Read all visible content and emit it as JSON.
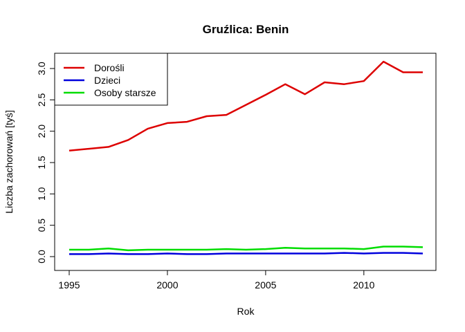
{
  "chart_data": {
    "type": "line",
    "title": "Gruźlica: Benin",
    "xlabel": "Rok",
    "ylabel": "Liczba zachorowań [tyś]",
    "xlim": [
      1995,
      2013
    ],
    "ylim": [
      0,
      3.1
    ],
    "x_ticks": [
      1995,
      2000,
      2005,
      2010
    ],
    "y_ticks": [
      0.0,
      0.5,
      1.0,
      1.5,
      2.0,
      2.5,
      3.0
    ],
    "x_tick_labels": [
      "1995",
      "2000",
      "2005",
      "2010"
    ],
    "y_tick_labels": [
      "0.0",
      "0.5",
      "1.0",
      "1.5",
      "2.0",
      "2.5",
      "3.0"
    ],
    "x": [
      1995,
      1996,
      1997,
      1998,
      1999,
      2000,
      2001,
      2002,
      2003,
      2004,
      2005,
      2006,
      2007,
      2008,
      2009,
      2010,
      2011,
      2012,
      2013
    ],
    "series": [
      {
        "name": "Dorośli",
        "color": "#dd0000",
        "values": [
          1.69,
          1.72,
          1.75,
          1.86,
          2.04,
          2.13,
          2.15,
          2.24,
          2.26,
          2.42,
          2.58,
          2.75,
          2.59,
          2.78,
          2.75,
          2.8,
          3.11,
          2.94,
          2.94
        ]
      },
      {
        "name": "Dzieci",
        "color": "#0000dd",
        "values": [
          0.04,
          0.04,
          0.05,
          0.04,
          0.04,
          0.05,
          0.04,
          0.04,
          0.05,
          0.05,
          0.05,
          0.05,
          0.05,
          0.05,
          0.06,
          0.05,
          0.06,
          0.06,
          0.05
        ]
      },
      {
        "name": "Osoby starsze",
        "color": "#00dd00",
        "values": [
          0.11,
          0.11,
          0.13,
          0.1,
          0.11,
          0.11,
          0.11,
          0.11,
          0.12,
          0.11,
          0.12,
          0.14,
          0.13,
          0.13,
          0.13,
          0.12,
          0.16,
          0.16,
          0.15
        ]
      }
    ],
    "legend_position": "top-left",
    "grid": false
  }
}
